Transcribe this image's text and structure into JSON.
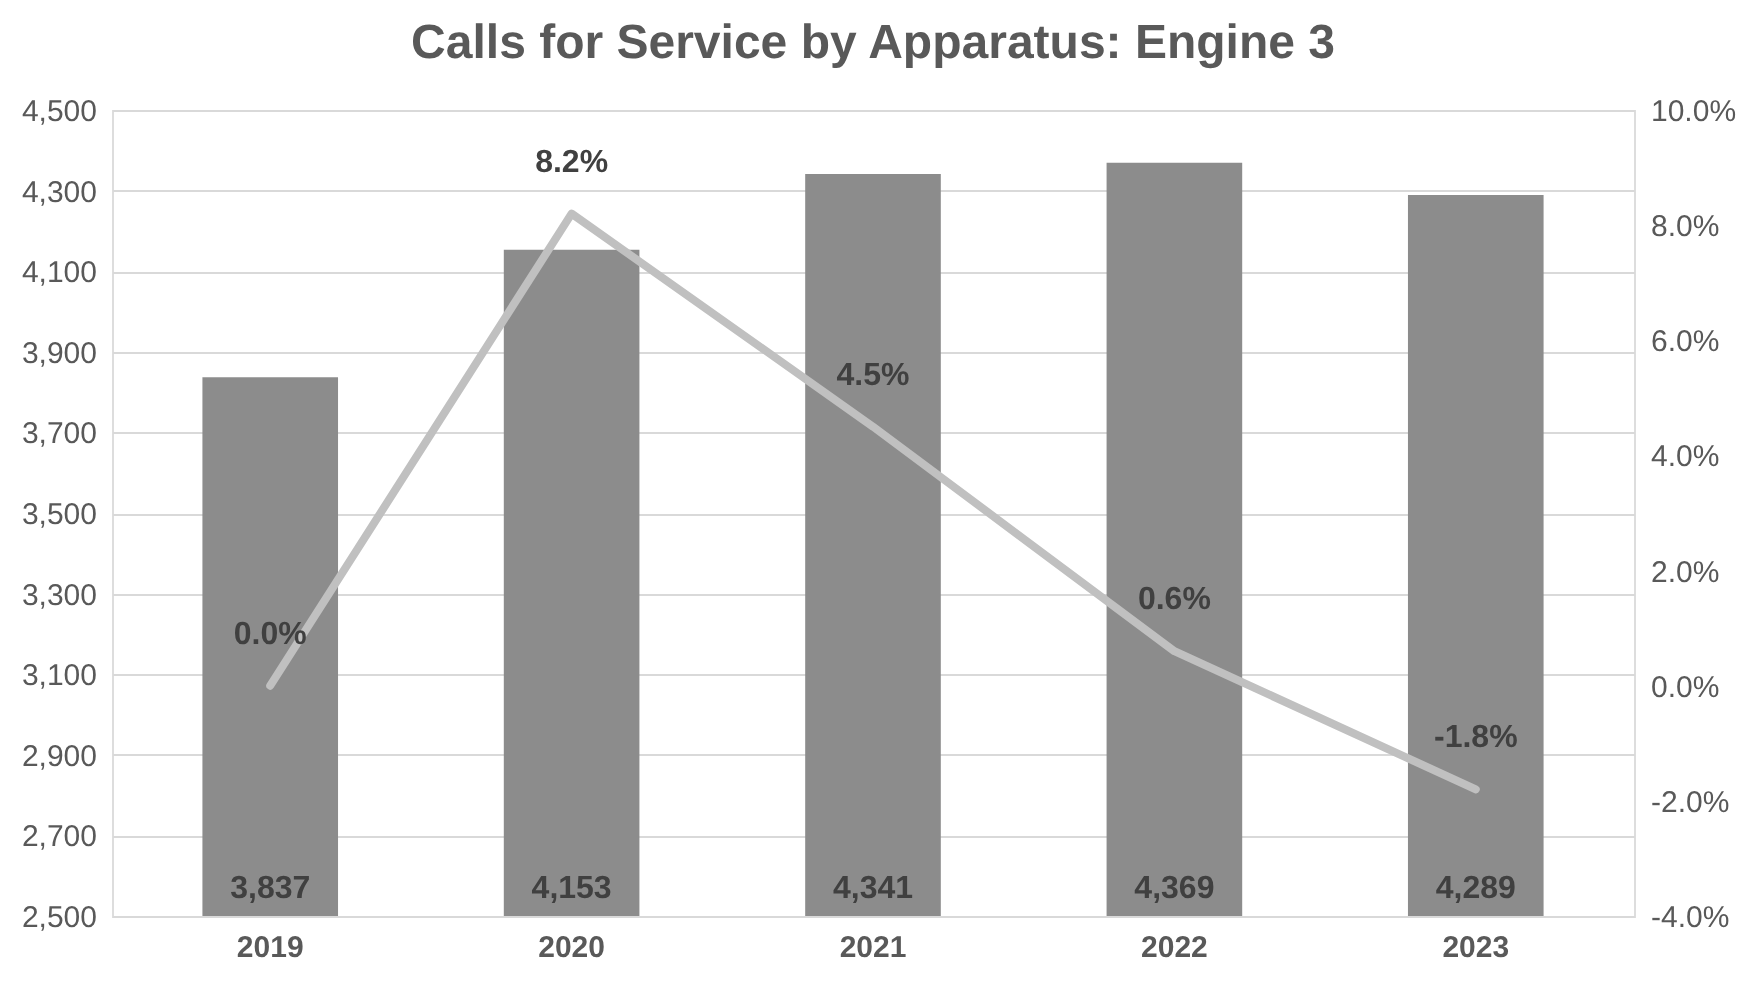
{
  "chart_data": {
    "type": "bar",
    "title": "Calls for Service by Apparatus: Engine 3",
    "categories": [
      "2019",
      "2020",
      "2021",
      "2022",
      "2023"
    ],
    "series": [
      {
        "color": "#8c8c8c",
        "values": [
          3837,
          4153,
          4341,
          4369,
          4289
        ],
        "value_labels": [
          "3,837",
          "4,153",
          "4,341",
          "4,369",
          "4,289"
        ]
      },
      {
        "type": "line",
        "axis": "y2",
        "color": "#c0c0c0",
        "values": [
          0.0,
          8.2,
          4.5,
          0.6,
          -1.8
        ],
        "value_labels": [
          "0.0%",
          "8.2%",
          "4.5%",
          "0.6%",
          "-1.8%"
        ]
      }
    ],
    "ylim": [
      2500,
      4500
    ],
    "yticks": [
      {
        "value": 2500,
        "label": "2,500"
      },
      {
        "value": 2700,
        "label": "2,700"
      },
      {
        "value": 2900,
        "label": "2,900"
      },
      {
        "value": 3100,
        "label": "3,100"
      },
      {
        "value": 3300,
        "label": "3,300"
      },
      {
        "value": 3500,
        "label": "3,500"
      },
      {
        "value": 3700,
        "label": "3,700"
      },
      {
        "value": 3900,
        "label": "3,900"
      },
      {
        "value": 4100,
        "label": "4,100"
      },
      {
        "value": 4300,
        "label": "4,300"
      },
      {
        "value": 4500,
        "label": "4,500"
      }
    ],
    "y2lim": [
      -4,
      10
    ],
    "y2ticks": [
      {
        "value": -4,
        "label": "-4.0%"
      },
      {
        "value": -2,
        "label": "-2.0%"
      },
      {
        "value": 0,
        "label": "0.0%"
      },
      {
        "value": 2,
        "label": "2.0%"
      },
      {
        "value": 4,
        "label": "4.0%"
      },
      {
        "value": 6,
        "label": "6.0%"
      },
      {
        "value": 8,
        "label": "8.0%"
      },
      {
        "value": 10,
        "label": "10.0%"
      }
    ],
    "grid": "y"
  }
}
